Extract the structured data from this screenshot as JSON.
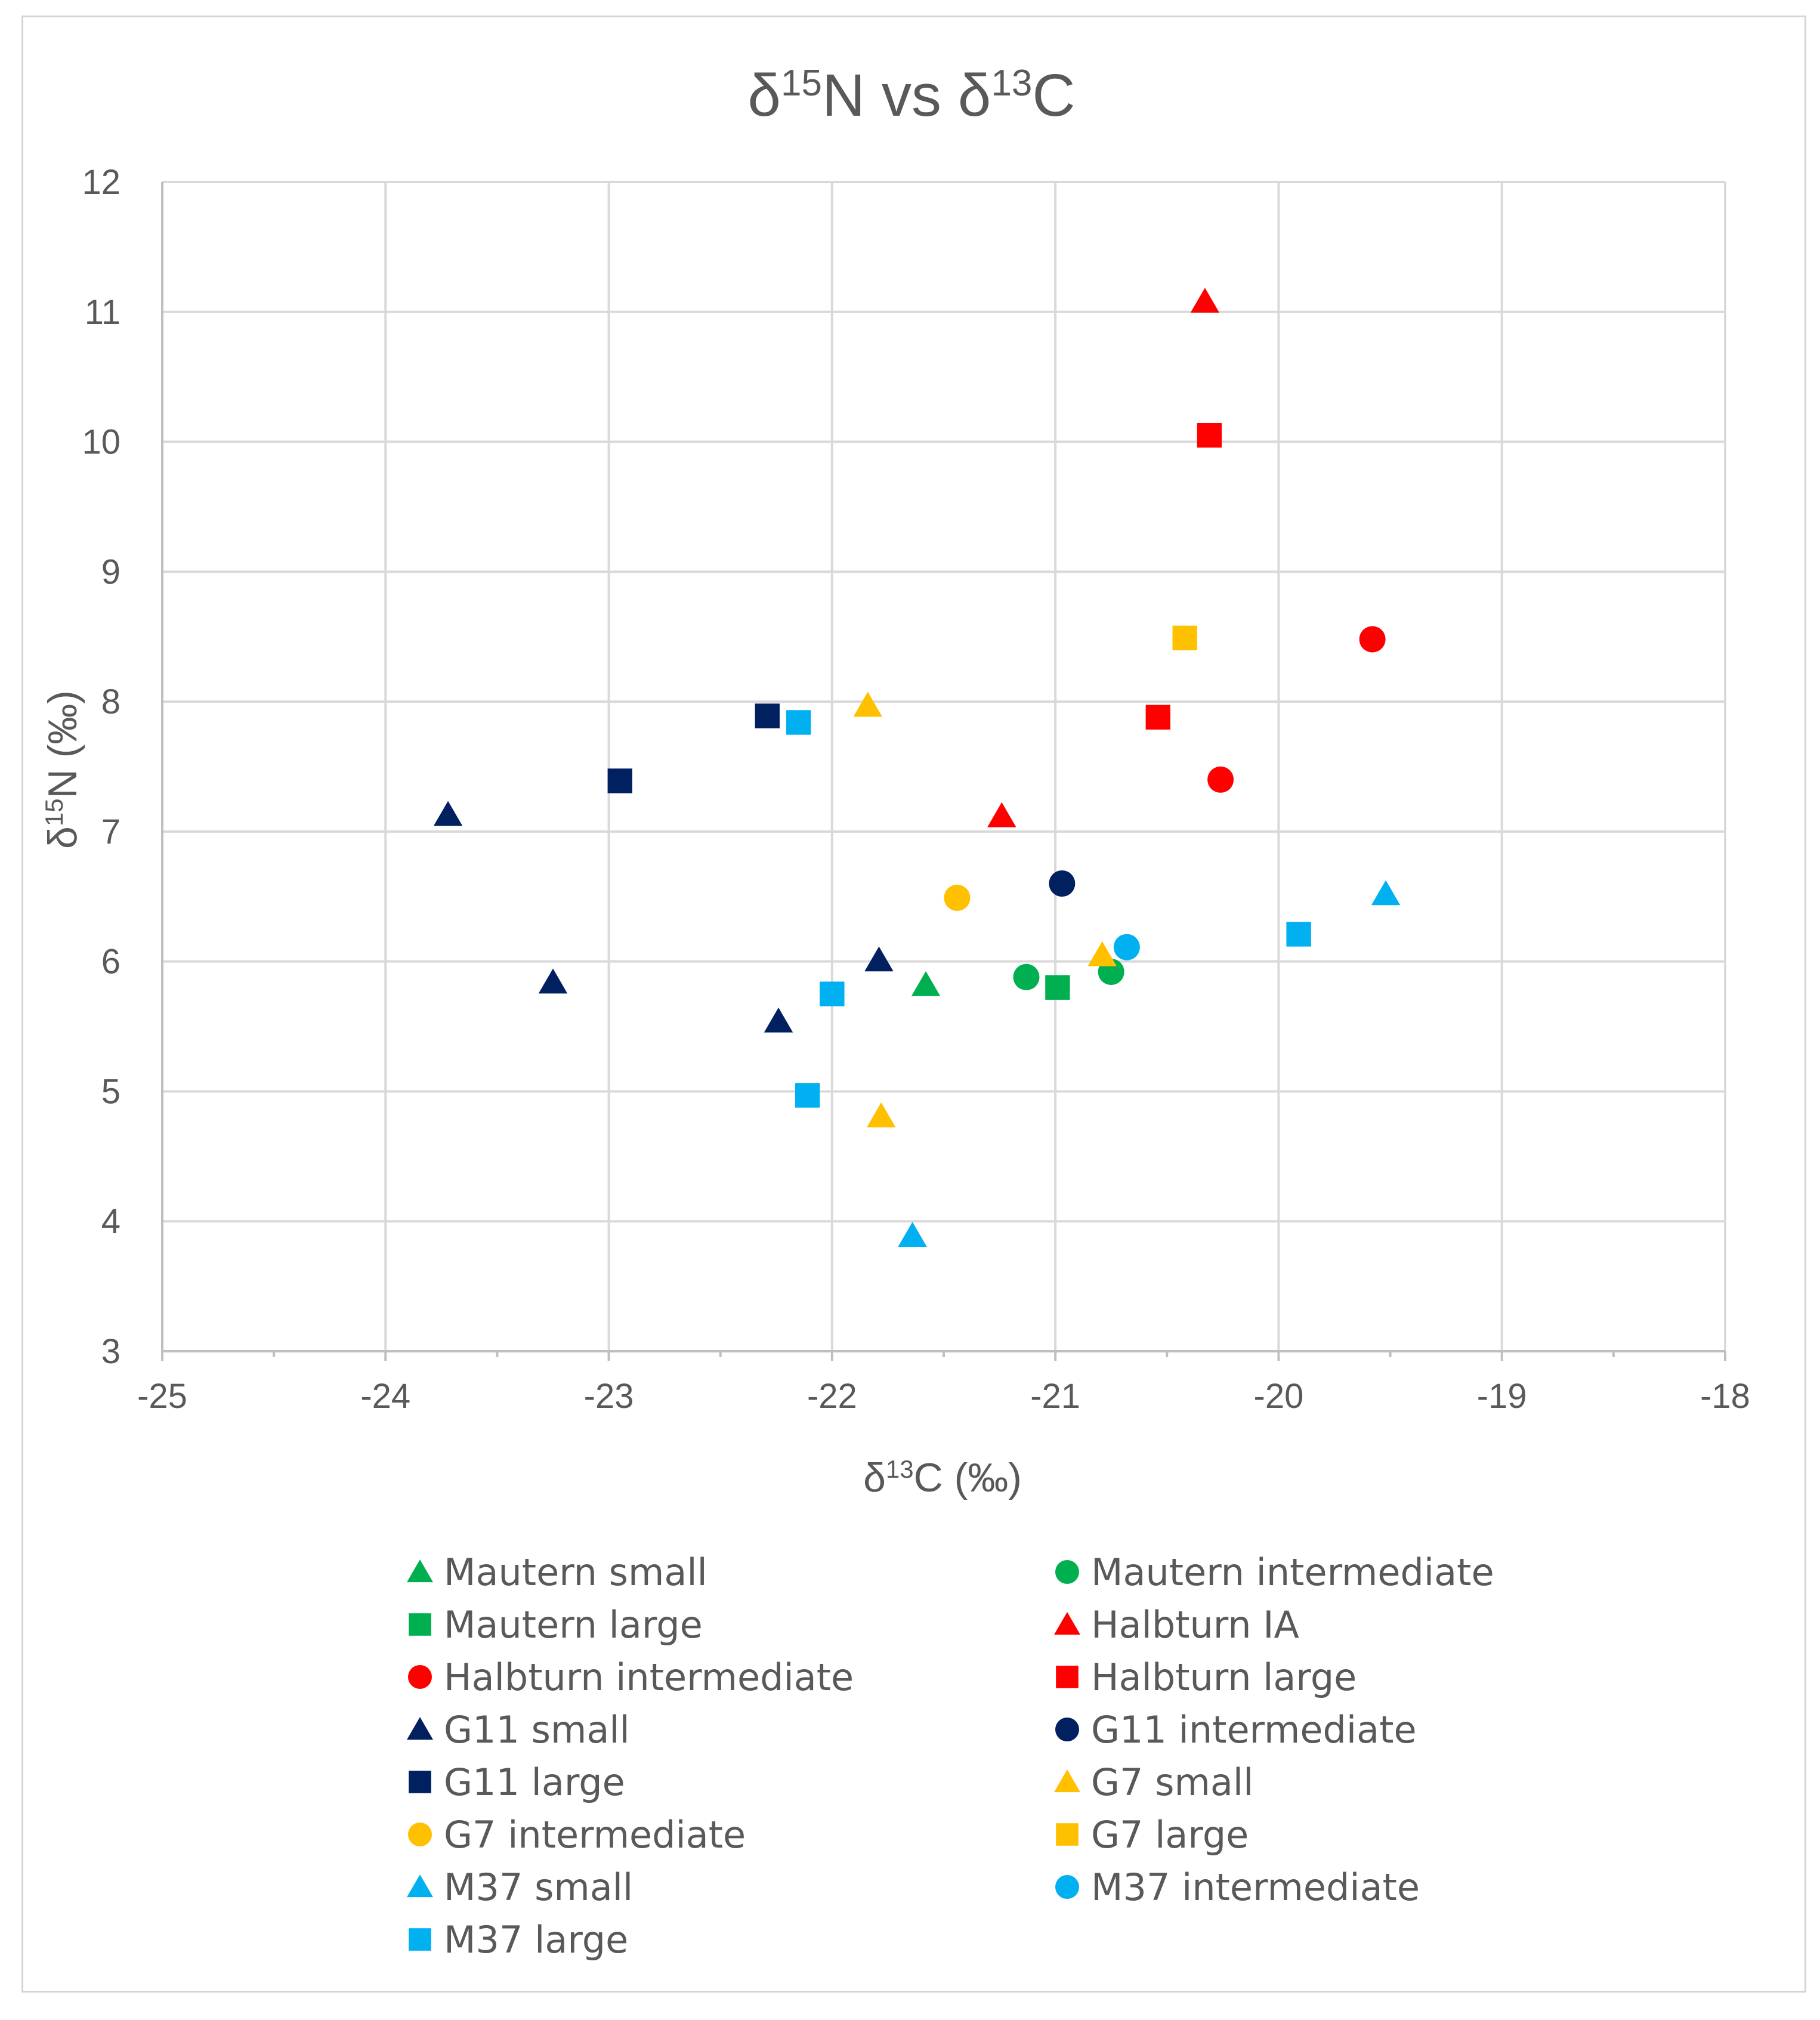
{
  "chart_data": {
    "type": "scatter",
    "title": {
      "prefix": "δ",
      "sup1": "15",
      "mid": "N vs δ",
      "sup2": "13",
      "suffix": "C"
    },
    "xlabel": {
      "prefix": "δ",
      "sup": "13",
      "suffix": "C (‰)"
    },
    "ylabel": {
      "prefix": "δ",
      "sup": "15",
      "suffix": "N (‰)"
    },
    "xlim": [
      -25,
      -18
    ],
    "ylim": [
      3,
      12
    ],
    "xticks": [
      -25,
      -24,
      -23,
      -22,
      -21,
      -20,
      -19,
      -18
    ],
    "yticks": [
      3,
      4,
      5,
      6,
      7,
      8,
      9,
      10,
      11,
      12
    ],
    "grid": true,
    "legend_position": "bottom",
    "series": [
      {
        "name": "Mautern small",
        "marker": "triangle",
        "color": "#00b050",
        "points": [
          [
            -21.58,
            5.82
          ]
        ]
      },
      {
        "name": "Mautern intermediate",
        "marker": "circle",
        "color": "#00b050",
        "points": [
          [
            -21.13,
            5.88
          ],
          [
            -20.75,
            5.92
          ]
        ]
      },
      {
        "name": "Mautern large",
        "marker": "square",
        "color": "#00b050",
        "points": [
          [
            -20.99,
            5.8
          ]
        ]
      },
      {
        "name": "Halbturn IA",
        "marker": "triangle",
        "color": "#ff0000",
        "points": [
          [
            -20.33,
            11.08
          ],
          [
            -21.24,
            7.12
          ]
        ]
      },
      {
        "name": "Halbturn intermediate",
        "marker": "circle",
        "color": "#ff0000",
        "points": [
          [
            -19.58,
            8.48
          ],
          [
            -20.26,
            7.4
          ]
        ]
      },
      {
        "name": "Halbturn large",
        "marker": "square",
        "color": "#ff0000",
        "points": [
          [
            -20.31,
            10.05
          ],
          [
            -20.54,
            7.88
          ]
        ]
      },
      {
        "name": "G11 small",
        "marker": "triangle",
        "color": "#002060",
        "points": [
          [
            -23.72,
            7.13
          ],
          [
            -23.25,
            5.84
          ],
          [
            -22.24,
            5.54
          ],
          [
            -21.79,
            6.01
          ]
        ]
      },
      {
        "name": "G11 intermediate",
        "marker": "circle",
        "color": "#002060",
        "points": [
          [
            -20.97,
            6.6
          ]
        ]
      },
      {
        "name": "G11 large",
        "marker": "square",
        "color": "#002060",
        "points": [
          [
            -22.95,
            7.39
          ],
          [
            -22.29,
            7.89
          ]
        ]
      },
      {
        "name": "G7 small",
        "marker": "triangle",
        "color": "#ffc000",
        "points": [
          [
            -21.84,
            7.97
          ],
          [
            -21.78,
            4.81
          ],
          [
            -20.79,
            6.05
          ]
        ]
      },
      {
        "name": "G7 intermediate",
        "marker": "circle",
        "color": "#ffc000",
        "points": [
          [
            -21.44,
            6.49
          ]
        ]
      },
      {
        "name": "G7 large",
        "marker": "square",
        "color": "#ffc000",
        "points": [
          [
            -20.42,
            8.49
          ]
        ]
      },
      {
        "name": "M37 small",
        "marker": "triangle",
        "color": "#00b0f0",
        "points": [
          [
            -21.64,
            3.89
          ],
          [
            -19.52,
            6.52
          ]
        ]
      },
      {
        "name": "M37 intermediate",
        "marker": "circle",
        "color": "#00b0f0",
        "points": [
          [
            -20.68,
            6.11
          ]
        ]
      },
      {
        "name": "M37 large",
        "marker": "square",
        "color": "#00b0f0",
        "points": [
          [
            -22.15,
            7.84
          ],
          [
            -22.0,
            5.75
          ],
          [
            -22.11,
            4.97
          ],
          [
            -19.91,
            6.21
          ]
        ]
      }
    ]
  }
}
